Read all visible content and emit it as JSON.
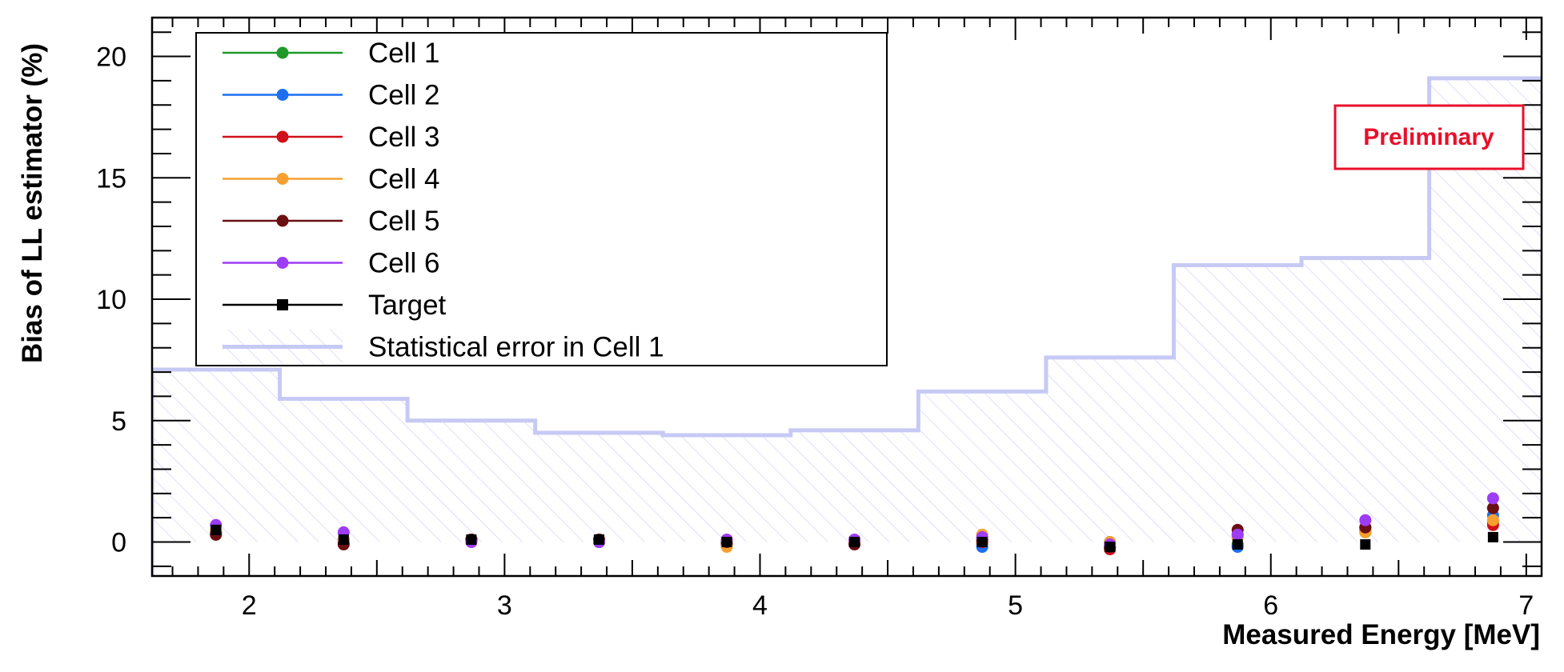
{
  "chart_data": {
    "type": "scatter",
    "xlabel": "Measured Energy [MeV]",
    "ylabel": "Bias of LL estimator (%)",
    "xlim": [
      1.62,
      7.06
    ],
    "ylim": [
      -1.4,
      21.6
    ],
    "x_ticks": [
      2,
      3,
      4,
      5,
      6,
      7
    ],
    "y_ticks": [
      0,
      5,
      10,
      15,
      20
    ],
    "legend_position": "top-left",
    "annotation": "Preliminary",
    "annotation_color": "#e8102a",
    "colors": {
      "band_line": "#c7c9f5",
      "hatch": "#cfd2f5"
    },
    "stat_error_band": {
      "name": "Statistical error in Cell 1",
      "edges": [
        1.62,
        2.12,
        2.62,
        3.12,
        3.62,
        4.12,
        4.62,
        5.12,
        5.62,
        6.12,
        6.62,
        7.06
      ],
      "values": [
        7.1,
        5.9,
        5.0,
        4.5,
        4.4,
        4.6,
        6.2,
        7.6,
        11.4,
        11.7,
        19.1
      ]
    },
    "x": [
      1.87,
      2.37,
      2.87,
      3.37,
      3.87,
      4.37,
      4.87,
      5.37,
      5.87,
      6.37,
      6.87
    ],
    "series": [
      {
        "name": "Cell 1",
        "color": "#1f9a2a",
        "marker": "circle",
        "values": [
          0.5,
          0.1,
          0.1,
          0.0,
          -0.1,
          0.0,
          -0.1,
          0.0,
          -0.1,
          0.4,
          0.8
        ]
      },
      {
        "name": "Cell 2",
        "color": "#1c6ff0",
        "marker": "circle",
        "values": [
          0.4,
          0.1,
          0.1,
          0.0,
          -0.1,
          0.0,
          -0.2,
          -0.2,
          -0.2,
          0.5,
          1.1
        ]
      },
      {
        "name": "Cell 3",
        "color": "#d0101a",
        "marker": "circle",
        "values": [
          0.4,
          0.0,
          0.1,
          0.1,
          -0.1,
          0.0,
          0.0,
          -0.3,
          0.3,
          0.6,
          0.7
        ]
      },
      {
        "name": "Cell 4",
        "color": "#f7a030",
        "marker": "circle",
        "values": [
          0.5,
          0.1,
          0.1,
          0.1,
          -0.2,
          0.0,
          0.3,
          0.0,
          0.2,
          0.4,
          0.9
        ]
      },
      {
        "name": "Cell 5",
        "color": "#6a0f12",
        "marker": "circle",
        "values": [
          0.3,
          -0.1,
          0.1,
          0.1,
          0.0,
          -0.1,
          0.1,
          -0.2,
          0.5,
          0.6,
          1.4
        ]
      },
      {
        "name": "Cell 6",
        "color": "#9d3cf5",
        "marker": "circle",
        "values": [
          0.7,
          0.4,
          0.0,
          0.0,
          0.1,
          0.1,
          0.2,
          -0.1,
          0.3,
          0.9,
          1.8
        ]
      },
      {
        "name": "Target",
        "color": "#000000",
        "marker": "square",
        "values": [
          0.5,
          0.1,
          0.1,
          0.1,
          0.0,
          0.0,
          0.0,
          -0.2,
          -0.1,
          -0.1,
          0.2
        ]
      }
    ]
  }
}
